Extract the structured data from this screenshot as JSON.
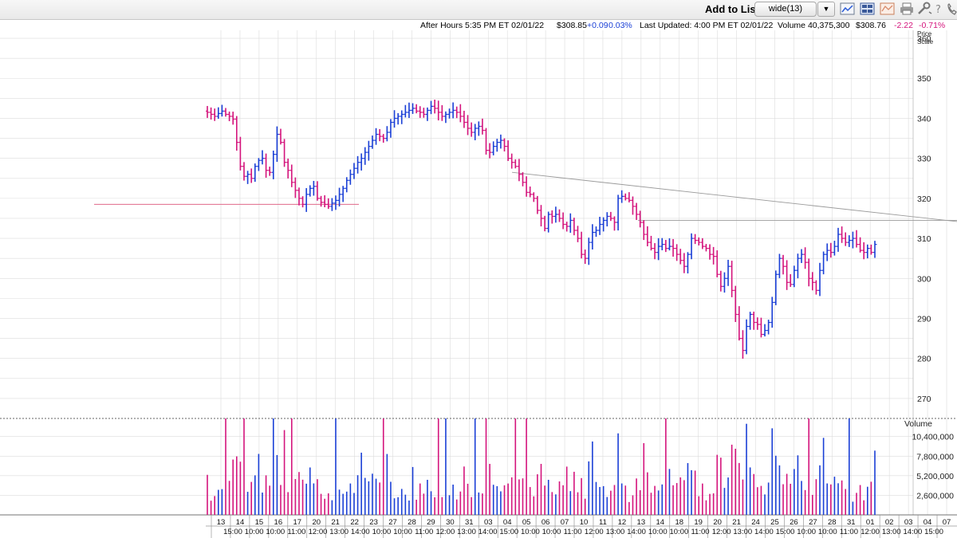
{
  "toolbar": {
    "add_to_list_label": "Add to List:",
    "list_value": "wide(13)",
    "icons": [
      "line-chart-icon",
      "layout-icon",
      "chart-style-icon",
      "print-icon",
      "tools-icon",
      "help-icon",
      "phone-icon"
    ]
  },
  "quote": {
    "after_hours": "After Hours 5:35 PM ET 02/01/22",
    "ah_price": "$308.85",
    "ah_change": "+0.09",
    "ah_pct": "0.03%",
    "last_updated": "Last Updated: 4:00 PM ET 02/01/22",
    "volume": "Volume 40,375,300",
    "price": "$308.76",
    "change": "-2.22",
    "pct": "-0.71%"
  },
  "colors": {
    "up": "#1a3fd6",
    "down": "#d4147c",
    "grid": "#dcdcdc",
    "trend": "#9a9a9a",
    "support": "#e06a8a"
  },
  "chart_data": {
    "type": "bar",
    "subtype": "hourly-ohlc-with-volume",
    "price_axis_label": "Price Scale",
    "volume_axis_label": "Volume",
    "ylim": [
      265,
      362
    ],
    "y_ticks": [
      360,
      350,
      340,
      330,
      320,
      310,
      300,
      290,
      280,
      270
    ],
    "volume_ticks": [
      "10,400,000",
      "7,800,000",
      "5,200,000",
      "2,600,000"
    ],
    "volume_tick_values": [
      10400000,
      7800000,
      5200000,
      2600000
    ],
    "volume_max": 12800000,
    "date_ticks": [
      "13",
      "14",
      "15",
      "16",
      "17",
      "20",
      "21",
      "22",
      "23",
      "27",
      "28",
      "29",
      "30",
      "31",
      "03",
      "04",
      "05",
      "06",
      "07",
      "10",
      "11",
      "12",
      "13",
      "14",
      "18",
      "19",
      "20",
      "21",
      "24",
      "25",
      "26",
      "27",
      "28",
      "31",
      "01",
      "02",
      "03",
      "04",
      "07"
    ],
    "time_ticks": [
      "15:00",
      "10:00",
      "10:00",
      "11:00",
      "12:00",
      "13:00",
      "14:00",
      "10:00",
      "10:00",
      "11:00",
      "12:00",
      "13:00",
      "14:00",
      "15:00",
      "10:00",
      "10:00",
      "11:00",
      "12:00",
      "13:00",
      "14:00",
      "10:00",
      "10:00",
      "11:00",
      "12:00",
      "13:00",
      "14:00",
      "15:00",
      "10:00",
      "10:00",
      "11:00",
      "12:00",
      "13:00",
      "14:00",
      "15:00"
    ],
    "closes": [
      341.5,
      341.0,
      340.5,
      341.2,
      341.8,
      341.0,
      340.5,
      339.8,
      334.0,
      328.0,
      325.5,
      326.0,
      325.0,
      328.0,
      329.5,
      330.0,
      327.0,
      326.5,
      331.0,
      336.0,
      334.0,
      329.0,
      327.0,
      324.0,
      322.0,
      320.0,
      318.5,
      321.0,
      322.5,
      323.0,
      320.0,
      319.0,
      318.5,
      318.0,
      318.8,
      319.5,
      321.0,
      322.5,
      324.5,
      326.0,
      327.5,
      329.0,
      330.0,
      331.5,
      333.0,
      334.5,
      336.0,
      335.5,
      335.0,
      336.5,
      339.0,
      340.0,
      340.5,
      341.0,
      341.5,
      342.0,
      342.5,
      341.8,
      341.5,
      341.0,
      342.0,
      343.0,
      342.5,
      341.5,
      340.5,
      341.0,
      341.5,
      342.0,
      341.5,
      340.5,
      339.0,
      337.5,
      336.5,
      337.5,
      338.0,
      337.0,
      332.0,
      331.5,
      333.0,
      334.0,
      334.5,
      333.0,
      330.0,
      329.0,
      328.0,
      326.0,
      324.0,
      321.5,
      321.0,
      320.0,
      317.0,
      315.0,
      312.5,
      316.0,
      315.5,
      316.0,
      315.0,
      313.5,
      313.0,
      314.5,
      312.0,
      310.0,
      306.0,
      305.0,
      309.0,
      311.5,
      312.0,
      313.5,
      314.5,
      315.5,
      315.0,
      314.0,
      320.0,
      320.5,
      320.0,
      319.5,
      318.0,
      316.0,
      314.0,
      311.0,
      309.0,
      307.5,
      306.5,
      308.0,
      308.5,
      307.5,
      308.0,
      307.5,
      306.0,
      304.5,
      303.0,
      306.0,
      310.0,
      309.5,
      309.0,
      308.0,
      307.5,
      306.0,
      305.5,
      301.0,
      298.0,
      300.0,
      303.0,
      297.0,
      291.0,
      285.0,
      282.0,
      288.0,
      291.0,
      289.0,
      288.5,
      286.0,
      287.0,
      289.0,
      294.0,
      301.0,
      305.0,
      303.0,
      299.0,
      298.5,
      302.0,
      305.0,
      306.0,
      304.0,
      300.0,
      299.0,
      297.0,
      302.0,
      306.0,
      307.0,
      306.5,
      308.0,
      311.0,
      310.0,
      309.0,
      309.5,
      310.0,
      308.5,
      307.0,
      306.5,
      307.5,
      306.5,
      308.5
    ]
  }
}
